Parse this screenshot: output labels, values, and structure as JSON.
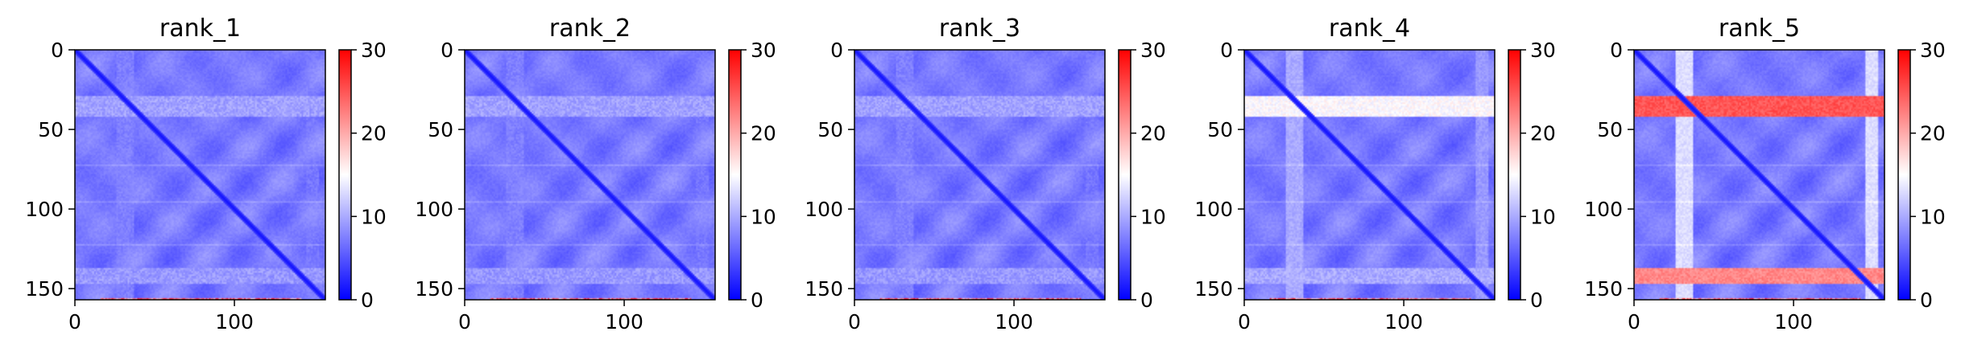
{
  "figure": {
    "colormap": "bwr",
    "colors": {
      "low": "#0000ff",
      "mid": "#ffffff",
      "high": "#ff0000"
    }
  },
  "chart_data": [
    {
      "type": "heatmap",
      "title": "rank_1",
      "xlabel": "",
      "ylabel": "",
      "xlim": [
        0,
        157
      ],
      "ylim": [
        157,
        0
      ],
      "x_ticks": [
        0,
        100
      ],
      "y_ticks": [
        0,
        50,
        100,
        150
      ],
      "colorbar": {
        "range": [
          0,
          30
        ],
        "ticks": [
          0,
          10,
          20,
          30
        ]
      },
      "features": {
        "base": 7.0,
        "diagonal": 1.0,
        "band_rows_30_40": 9.5,
        "band_rows_138_146": 9.0,
        "band_col_30": 7.5,
        "band_col_148": 7.0,
        "lines": [
          72,
          95,
          122
        ],
        "bottom_edge_red": true
      }
    },
    {
      "type": "heatmap",
      "title": "rank_2",
      "xlabel": "",
      "ylabel": "",
      "xlim": [
        0,
        157
      ],
      "ylim": [
        157,
        0
      ],
      "x_ticks": [
        0,
        100
      ],
      "y_ticks": [
        0,
        50,
        100,
        150
      ],
      "colorbar": {
        "range": [
          0,
          30
        ],
        "ticks": [
          0,
          10,
          20,
          30
        ]
      },
      "features": {
        "base": 7.0,
        "diagonal": 1.0,
        "band_rows_30_40": 9.5,
        "band_rows_138_146": 9.0,
        "band_col_30": 7.5,
        "band_col_148": 7.0,
        "lines": [
          72,
          95,
          122
        ],
        "bottom_edge_red": true
      }
    },
    {
      "type": "heatmap",
      "title": "rank_3",
      "xlabel": "",
      "ylabel": "",
      "xlim": [
        0,
        157
      ],
      "ylim": [
        157,
        0
      ],
      "x_ticks": [
        0,
        100
      ],
      "y_ticks": [
        0,
        50,
        100,
        150
      ],
      "colorbar": {
        "range": [
          0,
          30
        ],
        "ticks": [
          0,
          10,
          20,
          30
        ]
      },
      "features": {
        "base": 7.0,
        "diagonal": 1.0,
        "band_rows_30_40": 9.5,
        "band_rows_138_146": 9.0,
        "band_col_30": 7.5,
        "band_col_148": 7.0,
        "lines": [
          72,
          95,
          122
        ],
        "bottom_edge_red": true
      }
    },
    {
      "type": "heatmap",
      "title": "rank_4",
      "xlabel": "",
      "ylabel": "",
      "xlim": [
        0,
        157
      ],
      "ylim": [
        157,
        0
      ],
      "x_ticks": [
        0,
        100
      ],
      "y_ticks": [
        0,
        50,
        100,
        150
      ],
      "colorbar": {
        "range": [
          0,
          30
        ],
        "ticks": [
          0,
          10,
          20,
          30
        ]
      },
      "features": {
        "base": 7.0,
        "diagonal": 1.0,
        "band_rows_30_40": 15.0,
        "band_rows_138_146": 10.0,
        "band_col_30": 10.0,
        "band_col_148": 9.0,
        "lines": [
          72,
          95,
          122
        ],
        "bottom_edge_red": true
      }
    },
    {
      "type": "heatmap",
      "title": "rank_5",
      "xlabel": "",
      "ylabel": "",
      "xlim": [
        0,
        157
      ],
      "ylim": [
        157,
        0
      ],
      "x_ticks": [
        0,
        100
      ],
      "y_ticks": [
        0,
        50,
        100,
        150
      ],
      "colorbar": {
        "range": [
          0,
          30
        ],
        "ticks": [
          0,
          10,
          20,
          30
        ]
      },
      "features": {
        "base": 7.0,
        "diagonal": 1.0,
        "band_rows_30_40": 25.0,
        "band_rows_138_146": 22.0,
        "band_col_30": 13.0,
        "band_col_148": 13.0,
        "lines": [
          72,
          95,
          122
        ],
        "bottom_edge_red": true
      }
    }
  ]
}
